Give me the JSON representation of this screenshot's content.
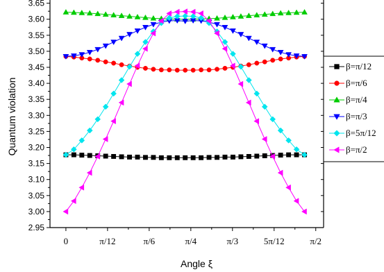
{
  "chart_data": {
    "type": "line",
    "xlabel": "Angle ξ",
    "ylabel": "Quantum violation",
    "xlim": [
      -0.1,
      1.62
    ],
    "ylim": [
      2.95,
      3.66
    ],
    "xticks": [
      {
        "value": 0,
        "label": "0"
      },
      {
        "value": 0.2618,
        "label": "π/12"
      },
      {
        "value": 0.5236,
        "label": "π/6"
      },
      {
        "value": 0.7854,
        "label": "π/4"
      },
      {
        "value": 1.0472,
        "label": "π/3"
      },
      {
        "value": 1.309,
        "label": "5π/12"
      },
      {
        "value": 1.5708,
        "label": "π/2"
      }
    ],
    "yticks": [
      "2.95",
      "3.00",
      "3.05",
      "3.10",
      "3.15",
      "3.20",
      "3.25",
      "3.30",
      "3.35",
      "3.40",
      "3.45",
      "3.50",
      "3.55",
      "3.60",
      "3.65"
    ],
    "legend_position": "right",
    "series": [
      {
        "name": "β=π/12",
        "color": "#000000",
        "marker": "square",
        "x": [
          0.0,
          0.05,
          0.1,
          0.15,
          0.2,
          0.25,
          0.3,
          0.35,
          0.4,
          0.45,
          0.5,
          0.55,
          0.6,
          0.65,
          0.7,
          0.75,
          0.8,
          0.85,
          0.9,
          0.95,
          1.0,
          1.05,
          1.1,
          1.15,
          1.2,
          1.25,
          1.3,
          1.35,
          1.4,
          1.45,
          1.5
        ],
        "y": [
          3.177,
          3.177,
          3.176,
          3.175,
          3.174,
          3.173,
          3.172,
          3.171,
          3.17,
          3.17,
          3.169,
          3.169,
          3.168,
          3.168,
          3.168,
          3.168,
          3.168,
          3.168,
          3.169,
          3.169,
          3.17,
          3.17,
          3.171,
          3.172,
          3.173,
          3.174,
          3.175,
          3.176,
          3.177,
          3.177,
          3.177
        ]
      },
      {
        "name": "β=π/6",
        "color": "#ff0000",
        "marker": "circle",
        "x": [
          0.0,
          0.05,
          0.1,
          0.15,
          0.2,
          0.25,
          0.3,
          0.35,
          0.4,
          0.45,
          0.5,
          0.55,
          0.6,
          0.65,
          0.7,
          0.75,
          0.8,
          0.85,
          0.9,
          0.95,
          1.0,
          1.05,
          1.1,
          1.15,
          1.2,
          1.25,
          1.3,
          1.35,
          1.4,
          1.45,
          1.5
        ],
        "y": [
          3.484,
          3.482,
          3.479,
          3.476,
          3.472,
          3.467,
          3.463,
          3.458,
          3.454,
          3.45,
          3.447,
          3.444,
          3.442,
          3.442,
          3.441,
          3.441,
          3.441,
          3.442,
          3.442,
          3.444,
          3.447,
          3.45,
          3.454,
          3.458,
          3.463,
          3.467,
          3.472,
          3.476,
          3.479,
          3.482,
          3.484
        ]
      },
      {
        "name": "β=π/4",
        "color": "#00cc00",
        "marker": "triangle-up",
        "x": [
          0.0,
          0.05,
          0.1,
          0.15,
          0.2,
          0.25,
          0.3,
          0.35,
          0.4,
          0.45,
          0.5,
          0.55,
          0.6,
          0.65,
          0.7,
          0.75,
          0.8,
          0.85,
          0.9,
          0.95,
          1.0,
          1.05,
          1.1,
          1.15,
          1.2,
          1.25,
          1.3,
          1.35,
          1.4,
          1.45,
          1.5
        ],
        "y": [
          3.622,
          3.621,
          3.62,
          3.619,
          3.617,
          3.615,
          3.613,
          3.611,
          3.609,
          3.607,
          3.605,
          3.603,
          3.602,
          3.601,
          3.6,
          3.6,
          3.6,
          3.601,
          3.602,
          3.603,
          3.605,
          3.607,
          3.609,
          3.611,
          3.613,
          3.615,
          3.617,
          3.619,
          3.62,
          3.621,
          3.622
        ]
      },
      {
        "name": "β=π/3",
        "color": "#0000ff",
        "marker": "triangle-down",
        "x": [
          0.0,
          0.05,
          0.1,
          0.15,
          0.2,
          0.25,
          0.3,
          0.35,
          0.4,
          0.45,
          0.5,
          0.55,
          0.6,
          0.65,
          0.7,
          0.75,
          0.8,
          0.85,
          0.9,
          0.95,
          1.0,
          1.05,
          1.1,
          1.15,
          1.2,
          1.25,
          1.3,
          1.35,
          1.4,
          1.45,
          1.5
        ],
        "y": [
          3.484,
          3.486,
          3.49,
          3.497,
          3.506,
          3.517,
          3.529,
          3.541,
          3.553,
          3.564,
          3.575,
          3.584,
          3.591,
          3.595,
          3.596,
          3.594,
          3.596,
          3.595,
          3.591,
          3.584,
          3.575,
          3.564,
          3.553,
          3.541,
          3.529,
          3.517,
          3.506,
          3.497,
          3.49,
          3.486,
          3.484
        ]
      },
      {
        "name": "β=5π/12",
        "color": "#00e5ee",
        "marker": "diamond",
        "x": [
          0.0,
          0.05,
          0.1,
          0.15,
          0.2,
          0.25,
          0.3,
          0.35,
          0.4,
          0.45,
          0.5,
          0.55,
          0.6,
          0.65,
          0.7,
          0.75,
          0.8,
          0.85,
          0.9,
          0.95,
          1.0,
          1.05,
          1.1,
          1.15,
          1.2,
          1.25,
          1.3,
          1.35,
          1.4,
          1.45,
          1.5
        ],
        "y": [
          3.177,
          3.194,
          3.222,
          3.253,
          3.288,
          3.327,
          3.368,
          3.41,
          3.452,
          3.492,
          3.529,
          3.562,
          3.588,
          3.604,
          3.609,
          3.61,
          3.609,
          3.604,
          3.588,
          3.562,
          3.529,
          3.492,
          3.452,
          3.41,
          3.368,
          3.327,
          3.288,
          3.253,
          3.222,
          3.194,
          3.177
        ]
      },
      {
        "name": "β=π/2",
        "color": "#ff00ff",
        "marker": "triangle-left",
        "x": [
          0.0,
          0.05,
          0.1,
          0.15,
          0.2,
          0.25,
          0.3,
          0.35,
          0.4,
          0.45,
          0.5,
          0.55,
          0.6,
          0.65,
          0.7,
          0.75,
          0.8,
          0.85,
          0.9,
          0.95,
          1.0,
          1.05,
          1.1,
          1.15,
          1.2,
          1.25,
          1.3,
          1.35,
          1.4,
          1.45,
          1.5
        ],
        "y": [
          3.0,
          3.033,
          3.075,
          3.121,
          3.172,
          3.226,
          3.282,
          3.34,
          3.398,
          3.455,
          3.508,
          3.556,
          3.595,
          3.618,
          3.623,
          3.624,
          3.623,
          3.618,
          3.595,
          3.556,
          3.508,
          3.455,
          3.398,
          3.34,
          3.282,
          3.226,
          3.172,
          3.121,
          3.075,
          3.033,
          3.0
        ]
      }
    ]
  }
}
